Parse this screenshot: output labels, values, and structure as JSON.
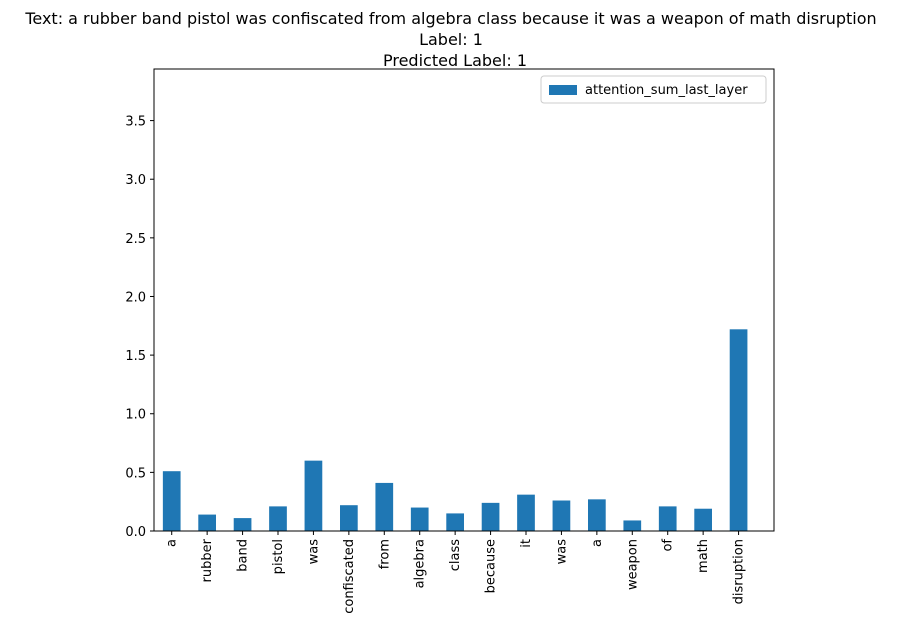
{
  "chart_data": {
    "type": "bar",
    "title_lines": [
      "Text: a rubber band pistol was confiscated from algebra class because it was a weapon of math disruption",
      "Label: 1",
      "Predicted Label: 1"
    ],
    "categories": [
      "a",
      "rubber",
      "band",
      "pistol",
      "was",
      "confiscated",
      "from",
      "algebra",
      "class",
      "because",
      "it",
      "was",
      "a",
      "weapon",
      "of",
      "math",
      "disruption"
    ],
    "series": [
      {
        "name": "attention_sum_last_layer",
        "color": "#1f77b4",
        "values": [
          0.51,
          0.14,
          0.11,
          0.21,
          0.6,
          0.22,
          0.41,
          0.2,
          0.15,
          0.24,
          0.31,
          0.26,
          0.27,
          0.09,
          0.21,
          0.19,
          1.72
        ]
      }
    ],
    "xlabel": "",
    "ylabel": "",
    "ylim": [
      0,
      3.94
    ],
    "yticks": [
      "0.0",
      "0.5",
      "1.0",
      "1.5",
      "2.0",
      "2.5",
      "3.0",
      "3.5"
    ],
    "ytick_values": [
      0,
      0.5,
      1.0,
      1.5,
      2.0,
      2.5,
      3.0,
      3.5
    ],
    "grid": false,
    "legend_position": "top-right"
  }
}
